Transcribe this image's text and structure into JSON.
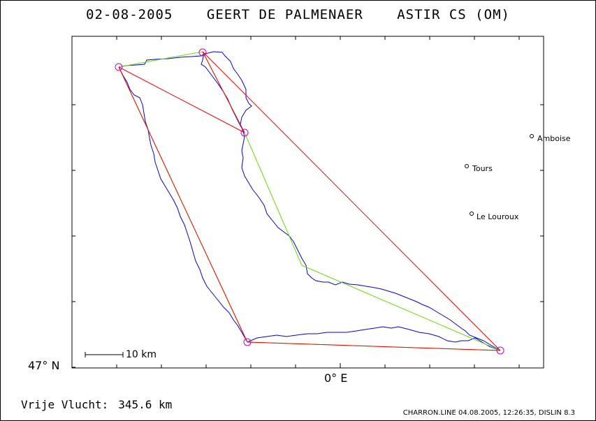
{
  "header": {
    "date": "02-08-2005",
    "pilot": "GEERT DE PALMENAER",
    "glider": "ASTIR CS (OM)"
  },
  "axes": {
    "lat_label": "47° N",
    "lon_label": "0° E"
  },
  "scale": {
    "label": "10 km"
  },
  "cities": [
    {
      "name": "Amboise"
    },
    {
      "name": "Tours"
    },
    {
      "name": "Le Louroux"
    }
  ],
  "flight": {
    "label": "Vrije Vlucht:",
    "distance": "345.6 km"
  },
  "footer": {
    "text": "CHARRON.LINE 04.08.2005, 12:26:35, DISLIN 8.3"
  },
  "colors": {
    "track": "#0000ee",
    "task_line": "#ff0000",
    "optimized_line": "#66dd00",
    "turnpoint": "#cc00cc",
    "frame": "#000000"
  }
}
